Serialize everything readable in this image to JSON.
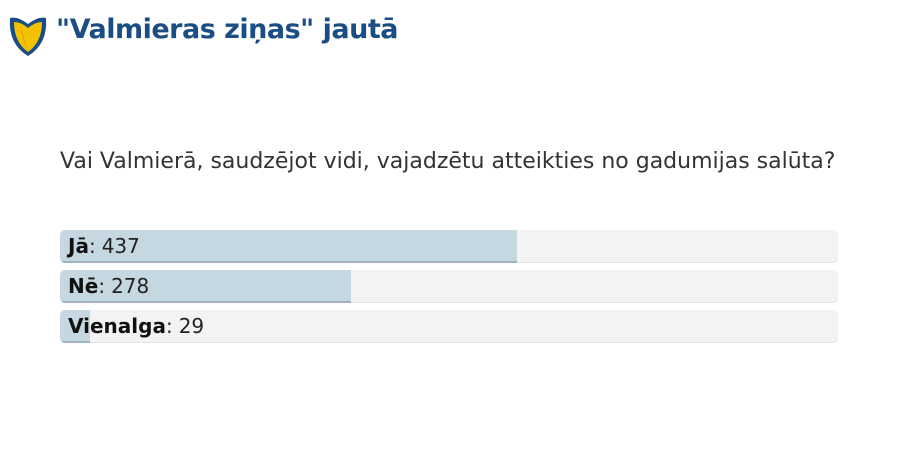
{
  "header": {
    "title": "\"Valmieras ziņas\" jautā"
  },
  "poll": {
    "question": "Vai Valmierā, saudzējot vidi, vajadzētu atteikties no gadumijas salūta?",
    "separator": ":",
    "options": [
      {
        "label": "Jā",
        "votes": 437
      },
      {
        "label": "Nē",
        "votes": 278
      },
      {
        "label": "Vienalga",
        "votes": 29
      }
    ]
  }
}
